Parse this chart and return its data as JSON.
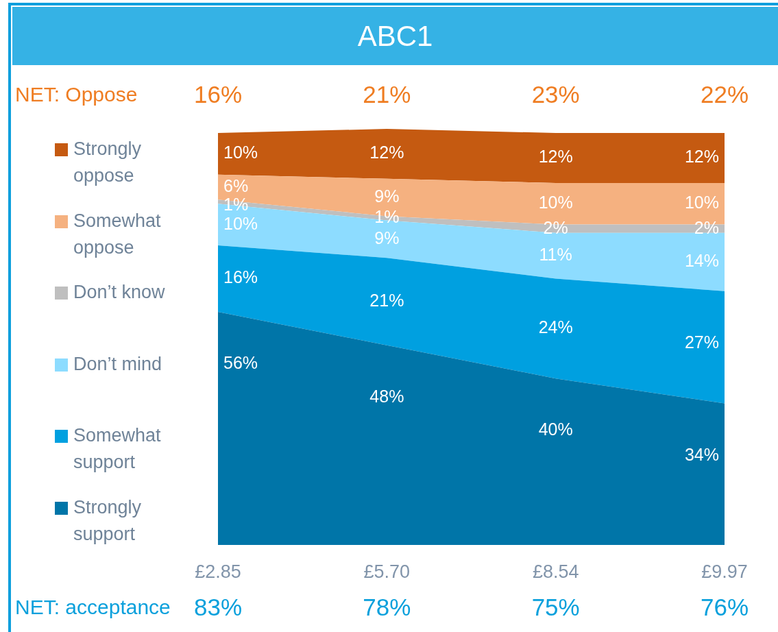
{
  "chart_data": {
    "type": "area",
    "title": "ABC1",
    "categories": [
      "£2.85",
      "£5.70",
      "£8.54",
      "£9.97"
    ],
    "series": [
      {
        "name": "Strongly support",
        "color": "#0075a8",
        "values": [
          56,
          48,
          40,
          34
        ],
        "value_labels": [
          "56%",
          "48%",
          "40%",
          "34%"
        ]
      },
      {
        "name": "Somewhat support",
        "color": "#00a0e0",
        "values": [
          16,
          21,
          24,
          27
        ],
        "value_labels": [
          "16%",
          "21%",
          "24%",
          "27%"
        ]
      },
      {
        "name": "Don’t mind",
        "color": "#8ddcff",
        "values": [
          10,
          9,
          11,
          14
        ],
        "value_labels": [
          "10%",
          "9%",
          "11%",
          "14%"
        ]
      },
      {
        "name": "Don’t know",
        "color": "#bfbfbf",
        "values": [
          1,
          1,
          2,
          2
        ],
        "value_labels": [
          "1%",
          "1%",
          "2%",
          "2%"
        ]
      },
      {
        "name": "Somewhat oppose",
        "color": "#f5b180",
        "values": [
          6,
          9,
          10,
          10
        ],
        "value_labels": [
          "6%",
          "9%",
          "10%",
          "10%"
        ]
      },
      {
        "name": "Strongly oppose",
        "color": "#c55a11",
        "values": [
          10,
          12,
          12,
          12
        ],
        "value_labels": [
          "10%",
          "12%",
          "12%",
          "12%"
        ]
      }
    ],
    "stacked": true,
    "tick_labels": "x",
    "legend": "left",
    "annotations": [
      "NET: Oppose",
      "16%",
      "21%",
      "23%",
      "22%",
      "NET: acceptance",
      "83%",
      "78%",
      "75%",
      "76%"
    ]
  }
}
